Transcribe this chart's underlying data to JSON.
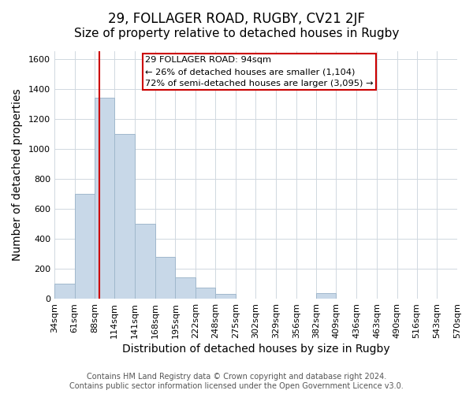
{
  "title": "29, FOLLAGER ROAD, RUGBY, CV21 2JF",
  "subtitle": "Size of property relative to detached houses in Rugby",
  "xlabel": "Distribution of detached houses by size in Rugby",
  "ylabel": "Number of detached properties",
  "bar_edges": [
    34,
    61,
    88,
    114,
    141,
    168,
    195,
    222,
    248,
    275,
    302,
    329,
    356,
    382,
    409,
    436,
    463,
    490,
    516,
    543,
    570
  ],
  "bar_heights": [
    100,
    700,
    1340,
    1100,
    500,
    280,
    140,
    75,
    30,
    0,
    0,
    0,
    0,
    35,
    0,
    0,
    0,
    0,
    0,
    0
  ],
  "tick_labels": [
    "34sqm",
    "61sqm",
    "88sqm",
    "114sqm",
    "141sqm",
    "168sqm",
    "195sqm",
    "222sqm",
    "248sqm",
    "275sqm",
    "302sqm",
    "329sqm",
    "356sqm",
    "382sqm",
    "409sqm",
    "436sqm",
    "463sqm",
    "490sqm",
    "516sqm",
    "543sqm",
    "570sqm"
  ],
  "bar_color": "#c8d8e8",
  "bar_edge_color": "#a0b8cc",
  "reference_line_x": 94,
  "reference_line_color": "#cc0000",
  "ylim": [
    0,
    1650
  ],
  "yticks": [
    0,
    200,
    400,
    600,
    800,
    1000,
    1200,
    1400,
    1600
  ],
  "annotation_title": "29 FOLLAGER ROAD: 94sqm",
  "annotation_line1": "← 26% of detached houses are smaller (1,104)",
  "annotation_line2": "72% of semi-detached houses are larger (3,095) →",
  "annotation_box_color": "#ffffff",
  "annotation_box_edge": "#cc0000",
  "footer_line1": "Contains HM Land Registry data © Crown copyright and database right 2024.",
  "footer_line2": "Contains public sector information licensed under the Open Government Licence v3.0.",
  "title_fontsize": 12,
  "subtitle_fontsize": 11,
  "label_fontsize": 10,
  "tick_fontsize": 8,
  "footer_fontsize": 7
}
